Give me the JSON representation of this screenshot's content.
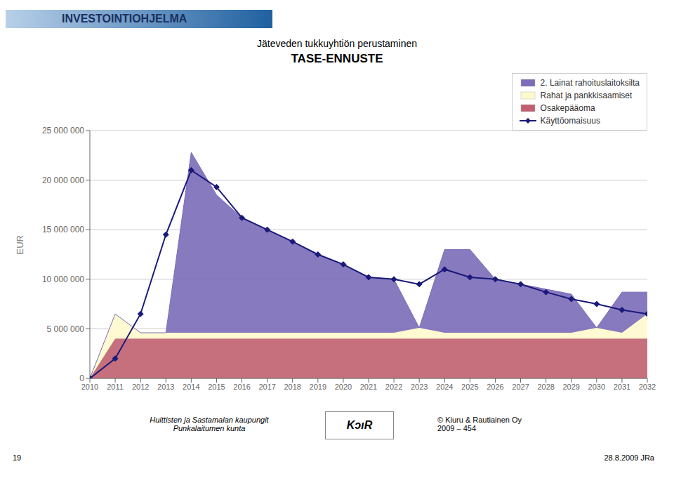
{
  "chart_data": {
    "type": "area",
    "title": "TASE-ENNUSTE",
    "subtitle": "Jäteveden tukkuyhtiön perustaminen",
    "ylabel": "EUR",
    "annotations": [
      "INVESTOINTIOHJELMA",
      "Huittisten ja Sastamalan kaupungit",
      "Punkalaitumen kunta",
      "© Kiuru & Rautiainen Oy",
      "2009 – 454",
      "KɔıR",
      "19",
      "28.8.2009 JRa"
    ],
    "x": [
      2010,
      2011,
      2012,
      2013,
      2014,
      2015,
      2016,
      2017,
      2018,
      2019,
      2020,
      2021,
      2022,
      2023,
      2024,
      2025,
      2026,
      2027,
      2028,
      2029,
      2030,
      2031,
      2032
    ],
    "xlim": [
      2010,
      2032
    ],
    "xticks": [
      2010,
      2011,
      2012,
      2013,
      2014,
      2015,
      2016,
      2017,
      2018,
      2019,
      2020,
      2021,
      2022,
      2023,
      2024,
      2025,
      2026,
      2027,
      2028,
      2029,
      2030,
      2031,
      2032
    ],
    "ylim": [
      0,
      25000000
    ],
    "yticks": [
      0,
      {
        "value": 5000000,
        "label": "5 000 000"
      },
      {
        "value": 10000000,
        "label": "10 000 000"
      },
      {
        "value": 15000000,
        "label": "15 000 000"
      },
      {
        "value": 20000000,
        "label": "20 000 000"
      },
      {
        "value": 25000000,
        "label": "25 000 000"
      }
    ],
    "grid": true,
    "legend": "upper right",
    "stacked": true,
    "series": [
      {
        "name": "2. Lainat rahoituslaitoksilta",
        "color": "#7B6BB8",
        "values": [
          0,
          0,
          0,
          0,
          18200000,
          13900000,
          11600000,
          10400000,
          9200000,
          7900000,
          6900000,
          5600000,
          5400000,
          0,
          8400000,
          8400000,
          5400000,
          4900000,
          4400000,
          3900000,
          0,
          4100000,
          2200000
        ]
      },
      {
        "name": "Rahat ja pankkisaamiset",
        "color": "#FFFACC",
        "values": [
          0,
          2500000,
          600000,
          600000,
          600000,
          600000,
          600000,
          600000,
          600000,
          600000,
          600000,
          600000,
          600000,
          1100000,
          600000,
          600000,
          600000,
          600000,
          600000,
          600000,
          1100000,
          600000,
          2500000
        ]
      },
      {
        "name": "Osakepääoma",
        "color": "#C06070",
        "values": [
          0,
          4000000,
          4000000,
          4000000,
          4000000,
          4000000,
          4000000,
          4000000,
          4000000,
          4000000,
          4000000,
          4000000,
          4000000,
          4000000,
          4000000,
          4000000,
          4000000,
          4000000,
          4000000,
          4000000,
          4000000,
          4000000,
          4000000
        ]
      },
      {
        "name": "Käyttöomaisuus",
        "color": "#1A1A7A",
        "type": "line",
        "marker": "diamond",
        "values": [
          0,
          2000000,
          6500000,
          14500000,
          21000000,
          19300000,
          16200000,
          15000000,
          13800000,
          12500000,
          11500000,
          10200000,
          10000000,
          9500000,
          11000000,
          10200000,
          10000000,
          9500000,
          8700000,
          8000000,
          7500000,
          6900000,
          6500000
        ]
      }
    ]
  }
}
